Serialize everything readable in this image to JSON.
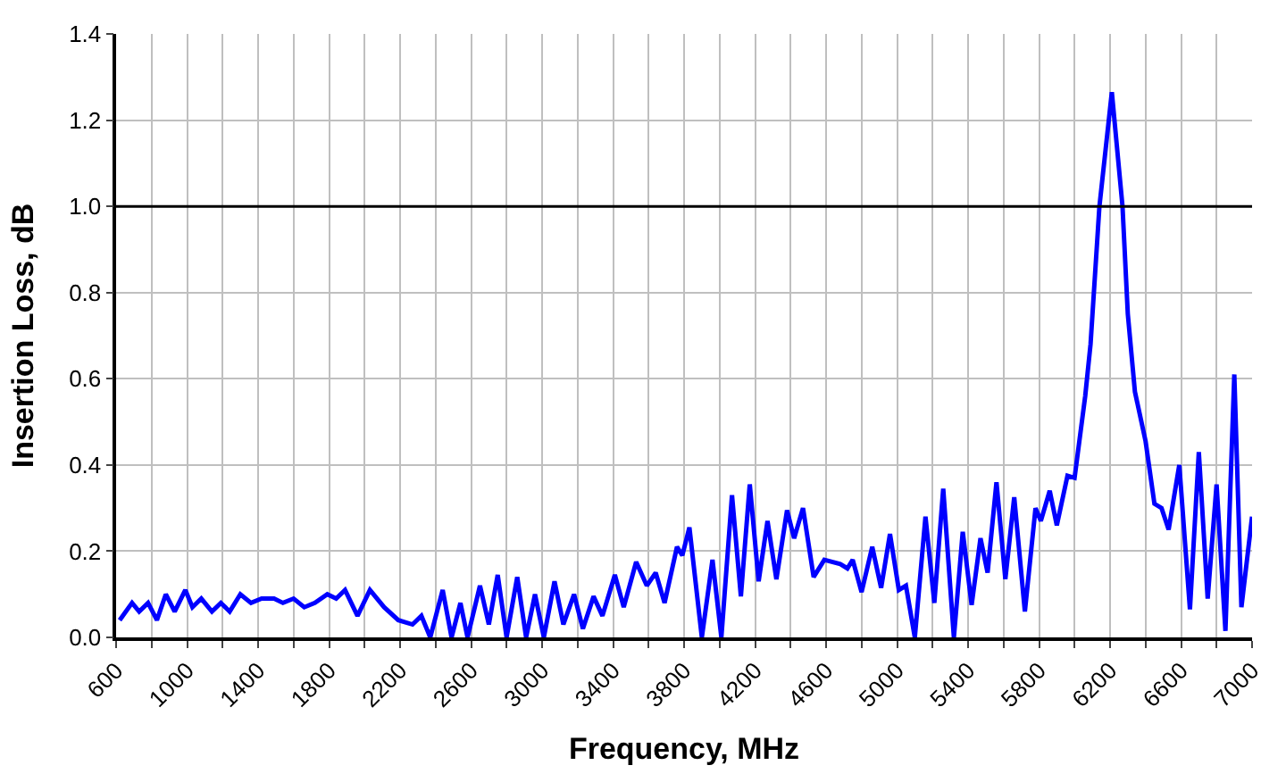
{
  "chart_data": {
    "type": "line",
    "xlabel": "Frequency, MHz",
    "ylabel": "Insertion Loss, dB",
    "x": [
      620,
      690,
      730,
      780,
      830,
      880,
      930,
      990,
      1030,
      1080,
      1140,
      1190,
      1240,
      1300,
      1360,
      1420,
      1490,
      1540,
      1600,
      1660,
      1720,
      1790,
      1840,
      1890,
      1960,
      2030,
      2110,
      2190,
      2270,
      2320,
      2370,
      2440,
      2490,
      2540,
      2580,
      2650,
      2700,
      2750,
      2800,
      2860,
      2910,
      2960,
      3010,
      3070,
      3120,
      3180,
      3230,
      3290,
      3340,
      3410,
      3460,
      3530,
      3590,
      3640,
      3690,
      3760,
      3790,
      3830,
      3900,
      3960,
      4010,
      4070,
      4120,
      4170,
      4220,
      4270,
      4320,
      4380,
      4420,
      4470,
      4530,
      4590,
      4680,
      4720,
      4750,
      4800,
      4860,
      4910,
      4960,
      5010,
      5050,
      5100,
      5160,
      5210,
      5260,
      5320,
      5370,
      5420,
      5470,
      5510,
      5560,
      5610,
      5660,
      5720,
      5780,
      5810,
      5860,
      5900,
      5960,
      6000,
      6060,
      6090,
      6140,
      6210,
      6270,
      6300,
      6340,
      6400,
      6450,
      6490,
      6530,
      6590,
      6650,
      6700,
      6750,
      6800,
      6850,
      6900,
      6940,
      7000
    ],
    "series": [
      {
        "color": "#0000ff",
        "values": [
          0.04,
          0.08,
          0.06,
          0.08,
          0.04,
          0.1,
          0.06,
          0.11,
          0.07,
          0.09,
          0.06,
          0.08,
          0.06,
          0.1,
          0.08,
          0.09,
          0.09,
          0.08,
          0.09,
          0.07,
          0.08,
          0.1,
          0.09,
          0.11,
          0.05,
          0.11,
          0.07,
          0.04,
          0.03,
          0.05,
          0.0,
          0.11,
          0.0,
          0.08,
          0.0,
          0.12,
          0.03,
          0.145,
          0.0,
          0.14,
          0.0,
          0.1,
          0.0,
          0.13,
          0.03,
          0.1,
          0.02,
          0.095,
          0.05,
          0.145,
          0.07,
          0.175,
          0.12,
          0.15,
          0.08,
          0.21,
          0.19,
          0.255,
          0.0,
          0.18,
          0.0,
          0.33,
          0.095,
          0.355,
          0.13,
          0.27,
          0.135,
          0.295,
          0.23,
          0.3,
          0.14,
          0.18,
          0.17,
          0.16,
          0.18,
          0.105,
          0.21,
          0.115,
          0.24,
          0.11,
          0.12,
          0.0,
          0.28,
          0.08,
          0.345,
          0.0,
          0.245,
          0.075,
          0.23,
          0.15,
          0.36,
          0.135,
          0.325,
          0.06,
          0.3,
          0.27,
          0.34,
          0.26,
          0.375,
          0.37,
          0.56,
          0.68,
          1.0,
          1.265,
          1.0,
          0.75,
          0.57,
          0.455,
          0.31,
          0.3,
          0.25,
          0.4,
          0.065,
          0.43,
          0.09,
          0.355,
          0.015,
          0.61,
          0.07,
          0.28
        ]
      }
    ],
    "xlim": [
      600,
      7000
    ],
    "xticks": [
      600,
      {
        "value": 800,
        "label": null
      },
      1000,
      {
        "value": 1200,
        "label": null
      },
      1400,
      {
        "value": 1600,
        "label": null
      },
      1800,
      {
        "value": 2000,
        "label": null
      },
      2200,
      {
        "value": 2400,
        "label": null
      },
      2600,
      {
        "value": 2800,
        "label": null
      },
      3000,
      {
        "value": 3200,
        "label": null
      },
      3400,
      {
        "value": 3600,
        "label": null
      },
      3800,
      {
        "value": 4000,
        "label": null
      },
      4200,
      {
        "value": 4400,
        "label": null
      },
      4600,
      {
        "value": 4800,
        "label": null
      },
      5000,
      {
        "value": 5200,
        "label": null
      },
      5400,
      {
        "value": 5600,
        "label": null
      },
      5800,
      {
        "value": 6000,
        "label": null
      },
      6200,
      {
        "value": 6400,
        "label": null
      },
      6600,
      {
        "value": 6800,
        "label": null
      },
      7000
    ],
    "ylim": [
      0,
      1.4
    ],
    "yticks": [
      {
        "value": 0,
        "label": "0.0"
      },
      {
        "value": 0.2,
        "label": "0.2"
      },
      {
        "value": 0.4,
        "label": "0.4"
      },
      {
        "value": 0.6,
        "label": "0.6"
      },
      {
        "value": 0.8,
        "label": "0.8"
      },
      {
        "value": 1.0,
        "label": "1.0"
      },
      {
        "value": 1.2,
        "label": "1.2"
      },
      {
        "value": 1.4,
        "label": "1.4"
      }
    ],
    "ref_lines": [
      {
        "axis": "y",
        "value": 1.0,
        "color": "#000000"
      }
    ],
    "grid": true,
    "marker": "none",
    "line_style": "solid"
  }
}
